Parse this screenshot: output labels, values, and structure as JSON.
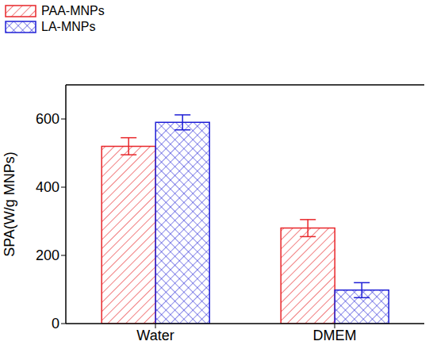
{
  "chart_data": {
    "type": "bar",
    "categories": [
      "Water",
      "DMEM"
    ],
    "series": [
      {
        "name": "PAA-MNPs",
        "color": "#e8262a",
        "values": [
          520,
          280
        ],
        "errors": [
          25,
          25
        ]
      },
      {
        "name": "LA-MNPs",
        "color": "#1f1fd6",
        "values": [
          590,
          98
        ],
        "errors": [
          22,
          22
        ]
      }
    ],
    "y_label": "SPA(W/g MNPs)",
    "ylim": [
      0,
      700
    ],
    "yticks": [
      0,
      200,
      400,
      600
    ],
    "grid": false,
    "legend": "top left"
  }
}
